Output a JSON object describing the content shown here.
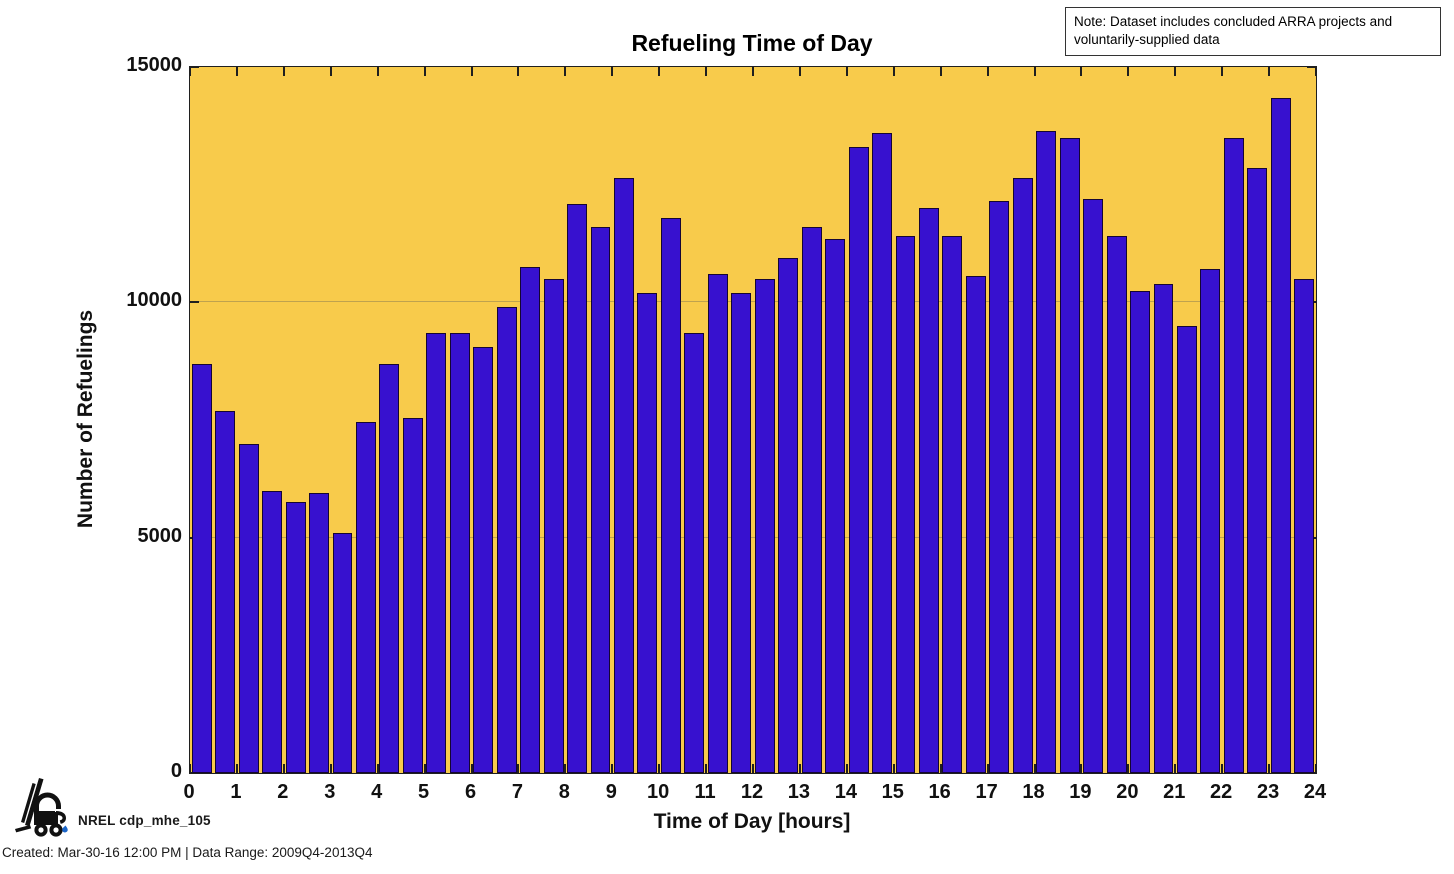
{
  "title": "Refueling Time of Day",
  "note_text": "Note: Dataset includes concluded ARRA projects and voluntarily-supplied data",
  "footer": {
    "logo_label": "NREL cdp_mhe_105",
    "created": "Created: Mar-30-16 12:00 PM | Data Range: 2009Q4-2013Q4"
  },
  "colors": {
    "plot_bg": "#F8CB4B",
    "bar_fill": "#3711CF",
    "bar_edge": "#150533",
    "axis": "#1f1f1f"
  },
  "chart_data": {
    "type": "bar",
    "title": "Refueling Time of Day",
    "xlabel": "Time of Day [hours]",
    "ylabel": "Number of Refuelings",
    "xlim": [
      0,
      24
    ],
    "ylim": [
      0,
      15000
    ],
    "x_ticks": [
      0,
      1,
      2,
      3,
      4,
      5,
      6,
      7,
      8,
      9,
      10,
      11,
      12,
      13,
      14,
      15,
      16,
      17,
      18,
      19,
      20,
      21,
      22,
      23,
      24
    ],
    "y_ticks": [
      0,
      5000,
      10000,
      15000
    ],
    "grid": "horizontal gridlines at 5000 and 10000",
    "legend": "none",
    "bin_hours": 0.5,
    "bar_width_fraction": 0.85,
    "bin_starts": [
      0,
      0.5,
      1,
      1.5,
      2,
      2.5,
      3,
      3.5,
      4,
      4.5,
      5,
      5.5,
      6,
      6.5,
      7,
      7.5,
      8,
      8.5,
      9,
      9.5,
      10,
      10.5,
      11,
      11.5,
      12,
      12.5,
      13,
      13.5,
      14,
      14.5,
      15,
      15.5,
      16,
      16.5,
      17,
      17.5,
      18,
      18.5,
      19,
      19.5,
      20,
      20.5,
      21,
      21.5,
      22,
      22.5,
      23,
      23.5
    ],
    "values": [
      8700,
      7700,
      7000,
      6000,
      5750,
      5950,
      5100,
      7450,
      8700,
      7550,
      9350,
      9350,
      9050,
      9900,
      10750,
      10500,
      12100,
      11600,
      12650,
      10200,
      11800,
      9350,
      10600,
      10200,
      10500,
      10950,
      11600,
      11350,
      13300,
      13600,
      11400,
      12000,
      11400,
      10550,
      12150,
      12650,
      13650,
      13500,
      12200,
      11400,
      10250,
      10400,
      9500,
      10700,
      13500,
      12850,
      14350,
      10500
    ]
  }
}
